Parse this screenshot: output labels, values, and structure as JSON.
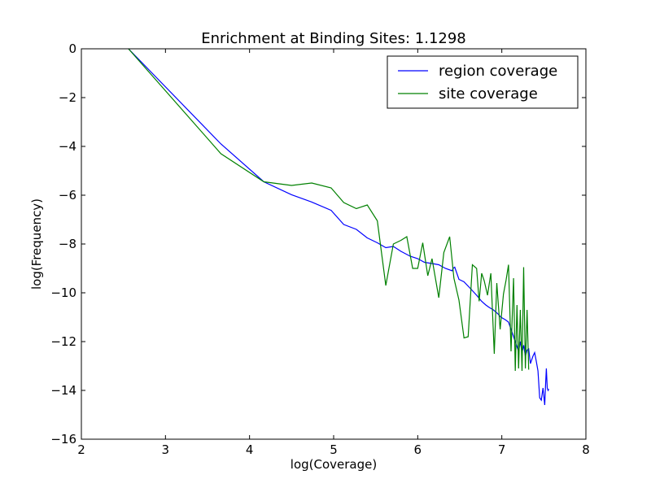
{
  "chart_data": {
    "type": "line",
    "title": "Enrichment at Binding Sites: 1.1298",
    "xlabel": "log(Coverage)",
    "ylabel": "log(Frequency)",
    "xlim": [
      2,
      8
    ],
    "ylim": [
      -16,
      0
    ],
    "xticks": [
      "2",
      "3",
      "4",
      "5",
      "6",
      "7",
      "8"
    ],
    "yticks": [
      "0",
      "−2",
      "−4",
      "−6",
      "−8",
      "−10",
      "−12",
      "−14",
      "−16"
    ],
    "grid": false,
    "legend_position": "top-right",
    "series": [
      {
        "name": "region coverage",
        "color": "#0000ff",
        "x": [
          2.56,
          3.66,
          4.17,
          4.5,
          4.74,
          4.97,
          5.12,
          5.27,
          5.4,
          5.52,
          5.62,
          5.71,
          5.8,
          5.91,
          6.0,
          6.08,
          6.17,
          6.25,
          6.33,
          6.41,
          6.42,
          6.44,
          6.49,
          6.55,
          6.62,
          6.7,
          6.76,
          6.81,
          6.85,
          6.9,
          6.95,
          6.99,
          7.04,
          7.08,
          7.12,
          7.17,
          7.2,
          7.22,
          7.24,
          7.26,
          7.28,
          7.3,
          7.32,
          7.34,
          7.37,
          7.39,
          7.41,
          7.43,
          7.45,
          7.47,
          7.49,
          7.51,
          7.52,
          7.53,
          7.54,
          7.55,
          7.56
        ],
        "y": [
          0.0,
          -3.9,
          -5.45,
          -5.98,
          -6.28,
          -6.62,
          -7.2,
          -7.4,
          -7.75,
          -7.95,
          -8.15,
          -8.1,
          -8.3,
          -8.5,
          -8.6,
          -8.75,
          -8.8,
          -8.85,
          -9.0,
          -9.1,
          -9.0,
          -8.95,
          -9.45,
          -9.55,
          -9.8,
          -10.1,
          -10.35,
          -10.5,
          -10.6,
          -10.7,
          -10.85,
          -11.0,
          -11.1,
          -11.2,
          -11.6,
          -12.1,
          -12.4,
          -12.0,
          -12.45,
          -12.15,
          -12.6,
          -12.35,
          -12.3,
          -12.9,
          -12.6,
          -12.45,
          -12.8,
          -13.2,
          -14.3,
          -14.4,
          -13.9,
          -14.6,
          -13.8,
          -13.1,
          -13.9,
          -14.0,
          -13.95
        ]
      },
      {
        "name": "site coverage",
        "color": "#008000",
        "x": [
          2.56,
          3.66,
          4.17,
          4.5,
          4.74,
          4.97,
          5.12,
          5.27,
          5.4,
          5.52,
          5.62,
          5.71,
          5.8,
          5.87,
          5.94,
          6.0,
          6.06,
          6.12,
          6.17,
          6.25,
          6.31,
          6.38,
          6.43,
          6.49,
          6.55,
          6.6,
          6.65,
          6.7,
          6.73,
          6.76,
          6.79,
          6.83,
          6.87,
          6.91,
          6.94,
          6.98,
          7.02,
          7.05,
          7.08,
          7.11,
          7.14,
          7.16,
          7.18,
          7.2,
          7.22,
          7.24,
          7.26,
          7.28,
          7.3,
          7.32
        ],
        "y": [
          0.0,
          -4.3,
          -5.45,
          -5.6,
          -5.5,
          -5.7,
          -6.3,
          -6.55,
          -6.4,
          -7.05,
          -9.7,
          -8.0,
          -7.85,
          -7.7,
          -9.0,
          -9.0,
          -7.95,
          -9.3,
          -8.6,
          -10.2,
          -8.35,
          -7.7,
          -9.4,
          -10.3,
          -11.85,
          -11.8,
          -8.85,
          -9.0,
          -10.35,
          -9.2,
          -9.5,
          -10.1,
          -9.2,
          -12.5,
          -9.6,
          -11.5,
          -10.05,
          -9.5,
          -8.85,
          -12.4,
          -9.4,
          -13.2,
          -10.5,
          -13.1,
          -10.7,
          -13.2,
          -8.95,
          -13.1,
          -10.7,
          -13.15
        ]
      }
    ]
  }
}
